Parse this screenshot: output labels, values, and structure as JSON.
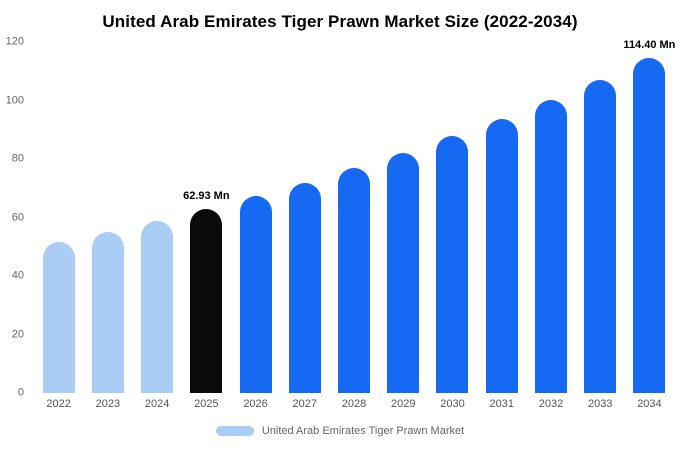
{
  "chart_data": {
    "type": "bar",
    "title": "United Arab Emirates Tiger Prawn Market Size (2022-2034)",
    "categories": [
      "2022",
      "2023",
      "2024",
      "2025",
      "2026",
      "2027",
      "2028",
      "2029",
      "2030",
      "2031",
      "2032",
      "2033",
      "2034"
    ],
    "values": [
      51.6,
      55.1,
      58.9,
      62.93,
      67.3,
      71.9,
      76.8,
      82.1,
      87.7,
      93.8,
      100.2,
      107.1,
      114.4
    ],
    "unit": "Mn",
    "xlabel": "",
    "ylabel": "",
    "ylim": [
      0,
      120
    ],
    "yticks": [
      0,
      20,
      40,
      60,
      80,
      100,
      120
    ],
    "grid": false,
    "legend_position": "bottom",
    "bar_colors": [
      "#A9CDF4",
      "#A9CDF4",
      "#A9CDF4",
      "#0B0B0B",
      "#1669F2",
      "#1669F2",
      "#1669F2",
      "#1669F2",
      "#1669F2",
      "#1669F2",
      "#1669F2",
      "#1669F2",
      "#1669F2"
    ],
    "annotations": [
      {
        "index": 3,
        "text": "62.93 Mn"
      },
      {
        "index": 12,
        "text": "114.40 Mn"
      }
    ]
  },
  "legend": {
    "label": "United Arab Emirates Tiger Prawn Market",
    "swatch_color": "#A9CDF4"
  },
  "colors": {
    "historical": "#A9CDF4",
    "current": "#0B0B0B",
    "forecast": "#1669F2"
  }
}
